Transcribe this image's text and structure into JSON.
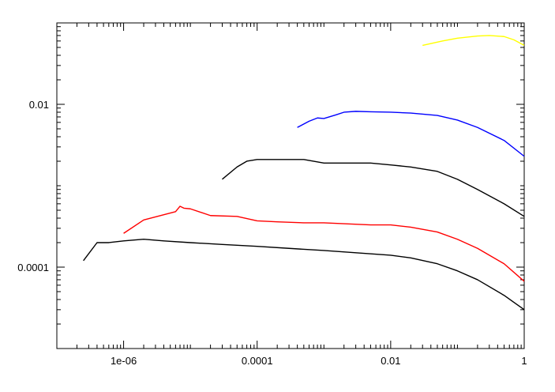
{
  "chart_data": {
    "type": "line",
    "title": "",
    "xlabel": "",
    "ylabel": "",
    "x_scale": "log",
    "y_scale": "log",
    "xlim": [
      1e-07,
      1
    ],
    "ylim": [
      1e-05,
      0.1
    ],
    "grid": false,
    "legend": "none",
    "x_tick_labels": [
      {
        "value": 1e-06,
        "label": "1e-06"
      },
      {
        "value": 0.0001,
        "label": "0.0001"
      },
      {
        "value": 0.01,
        "label": "0.01"
      },
      {
        "value": 1,
        "label": "1"
      }
    ],
    "y_tick_labels": [
      {
        "value": 0.0001,
        "label": "0.0001"
      },
      {
        "value": 0.01,
        "label": "0.01"
      }
    ],
    "series": [
      {
        "color": "#ffff00",
        "x": [
          0.03,
          0.06,
          0.1,
          0.2,
          0.3,
          0.5,
          0.7,
          1.0
        ],
        "y": [
          0.053,
          0.06,
          0.065,
          0.069,
          0.07,
          0.068,
          0.062,
          0.053
        ]
      },
      {
        "color": "#0000ff",
        "x": [
          0.0004,
          0.0006,
          0.0008,
          0.001,
          0.0015,
          0.002,
          0.003,
          0.005,
          0.01,
          0.02,
          0.05,
          0.1,
          0.2,
          0.5,
          1.0
        ],
        "y": [
          0.0052,
          0.0062,
          0.0068,
          0.0067,
          0.0074,
          0.008,
          0.0082,
          0.0081,
          0.008,
          0.0078,
          0.0073,
          0.0064,
          0.0052,
          0.0036,
          0.0023
        ]
      },
      {
        "color": "#000000",
        "x": [
          3e-05,
          5e-05,
          7e-05,
          0.0001,
          0.0002,
          0.0005,
          0.001,
          0.002,
          0.005,
          0.01,
          0.02,
          0.05,
          0.1,
          0.2,
          0.5,
          1.0
        ],
        "y": [
          0.0012,
          0.0017,
          0.002,
          0.0021,
          0.0021,
          0.0021,
          0.0019,
          0.0019,
          0.0019,
          0.0018,
          0.0017,
          0.0015,
          0.0012,
          0.0009,
          0.0006,
          0.00042
        ]
      },
      {
        "color": "#ff0000",
        "x": [
          1e-06,
          2e-06,
          4e-06,
          6e-06,
          7e-06,
          8e-06,
          1e-05,
          2e-05,
          5e-05,
          0.0001,
          0.0002,
          0.0005,
          0.001,
          0.005,
          0.01,
          0.02,
          0.05,
          0.1,
          0.2,
          0.5,
          1.0
        ],
        "y": [
          0.00026,
          0.00038,
          0.00044,
          0.00048,
          0.00056,
          0.00053,
          0.00052,
          0.00043,
          0.00042,
          0.00037,
          0.00036,
          0.00035,
          0.00035,
          0.00033,
          0.00033,
          0.00031,
          0.00027,
          0.00022,
          0.00017,
          0.00011,
          6.7e-05
        ]
      },
      {
        "color": "#000000",
        "x": [
          2.5e-07,
          4e-07,
          6e-07,
          1e-06,
          2e-06,
          4e-06,
          1e-05,
          3e-05,
          0.0001,
          0.0003,
          0.001,
          0.003,
          0.01,
          0.02,
          0.05,
          0.1,
          0.2,
          0.5,
          1.0
        ],
        "y": [
          0.00012,
          0.0002,
          0.0002,
          0.00021,
          0.00022,
          0.00021,
          0.0002,
          0.00019,
          0.00018,
          0.00017,
          0.00016,
          0.00015,
          0.00014,
          0.00013,
          0.00011,
          9e-05,
          7e-05,
          4.5e-05,
          3e-05
        ]
      }
    ]
  }
}
